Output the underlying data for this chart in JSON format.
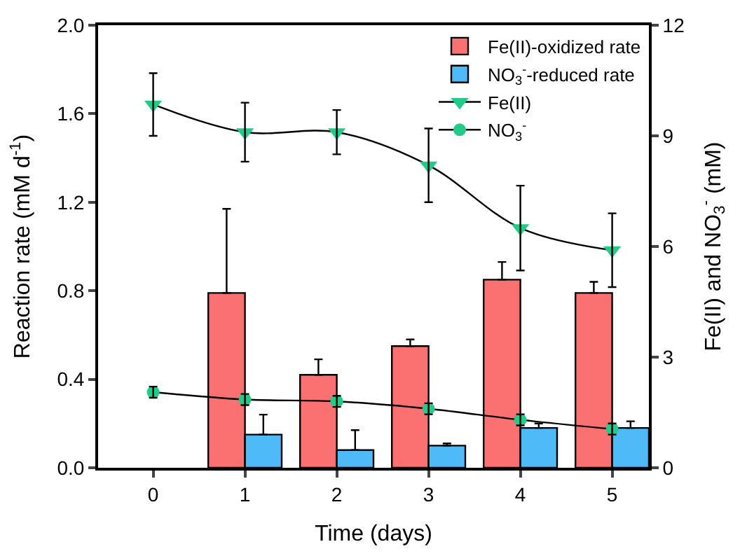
{
  "chart_data": {
    "type": "bar",
    "xlabel": "Time (days)",
    "ylabel": "Reaction rate (mM d$^{-1}$)",
    "y2label": "Fe(II) and NO$_{3}$$^{-}$ (mM)",
    "x": [
      0,
      1,
      2,
      3,
      4,
      5
    ],
    "xlim": [
      -0.6,
      5.4
    ],
    "xticks": [
      0,
      1,
      2,
      3,
      4,
      5
    ],
    "ylim": [
      0,
      2.0
    ],
    "yticks": [
      {
        "value": 0,
        "label": "0.0"
      },
      0.4,
      0.8,
      1.2,
      1.6,
      {
        "value": 2,
        "label": "2.0"
      }
    ],
    "y2lim": [
      0,
      12
    ],
    "y2ticks": [
      0,
      3,
      6,
      9,
      12
    ],
    "legend": "top right",
    "series": [
      {
        "name": "Fe(II)-oxidized rate",
        "color": "#fb7070",
        "values": [
          null,
          0.79,
          0.42,
          0.55,
          0.85,
          0.79
        ],
        "errors": [
          null,
          0.38,
          0.07,
          0.03,
          0.08,
          0.05
        ]
      },
      {
        "name": "NO$_{3}$$^{-}$-reduced rate",
        "color": "#4fbaf8",
        "values": [
          null,
          0.15,
          0.08,
          0.1,
          0.18,
          0.18
        ],
        "errors": [
          null,
          0.09,
          0.09,
          0.01,
          0.02,
          0.03
        ]
      },
      {
        "name": "Fe(II)",
        "type": "line",
        "axis": "y2",
        "marker": "triangle",
        "color": "#22cc88",
        "values": [
          9.85,
          9.1,
          9.1,
          8.2,
          6.5,
          5.9
        ],
        "errors": [
          0.85,
          0.8,
          0.6,
          1.0,
          1.15,
          1.0
        ]
      },
      {
        "name": "NO$_{3}$$^{-}$",
        "type": "line",
        "axis": "y2",
        "marker": "circle",
        "color": "#22cc88",
        "values": [
          2.05,
          1.85,
          1.8,
          1.6,
          1.3,
          1.05
        ],
        "errors": [
          0.15,
          0.15,
          0.15,
          0.15,
          0.15,
          0.15
        ]
      }
    ]
  }
}
